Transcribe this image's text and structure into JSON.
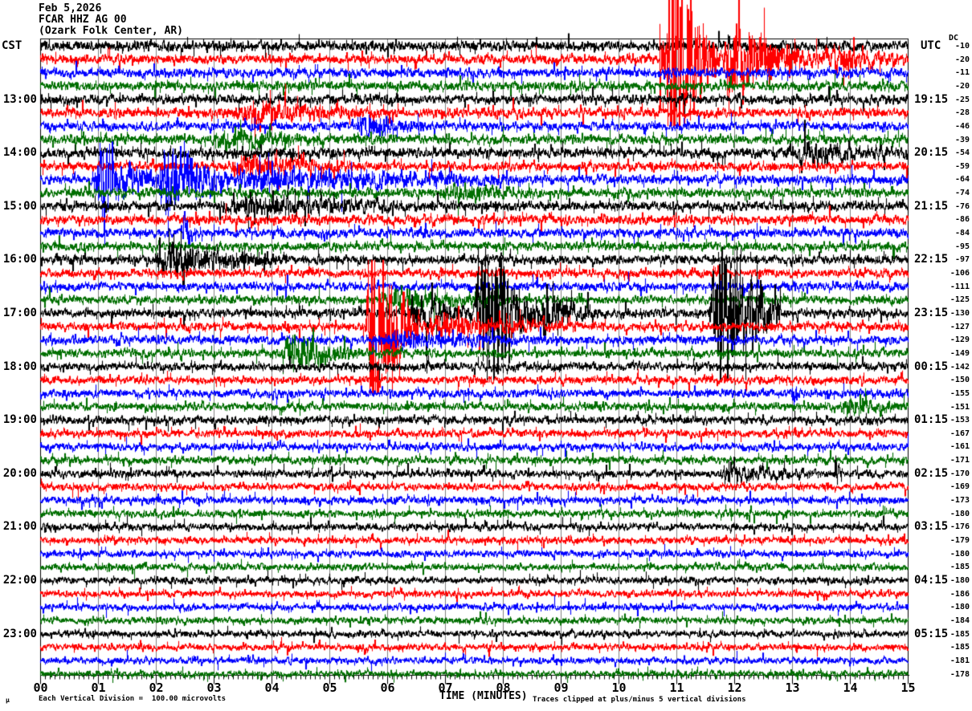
{
  "header": {
    "date": "Feb 5,2026",
    "station": "FCAR HHZ AG 00",
    "location": "(Ozark Folk Center, AR)"
  },
  "left_axis": {
    "label": "CST"
  },
  "right_axis": {
    "label": "UTC"
  },
  "dc_column": {
    "label": "DC"
  },
  "x_axis": {
    "title": "TIME (MINUTES)",
    "tick_labels": [
      "00",
      "01",
      "02",
      "03",
      "04",
      "05",
      "06",
      "07",
      "08",
      "09",
      "10",
      "11",
      "12",
      "13",
      "14",
      "15"
    ],
    "minutes_min": 0,
    "minutes_max": 15,
    "minor_ticks_per_minute": 12
  },
  "footer": {
    "micro_symbol": "µ",
    "scale_note": "Each Vertical Division =  100.00 microvolts",
    "clip_note": "Traces clipped at plus/minus 5 vertical divisions"
  },
  "colors": {
    "trace_cycle": [
      "#000000",
      "#ff0000",
      "#0000ff",
      "#006e00"
    ],
    "grid": "#808080",
    "frame": "#000000",
    "background": "#ffffff"
  },
  "chart_data": {
    "type": "line",
    "subtype": "seismogram-helicorder",
    "station": "FCAR HHZ AG 00",
    "location": "(Ozark Folk Center, AR)",
    "date": "Feb 5,2026",
    "minutes_per_line": 15,
    "lines_per_hour": 4,
    "clip_divisions": 5,
    "division_microvolts": 100.0,
    "rows": [
      {
        "color": "black",
        "cst": null,
        "utc": null,
        "dc": -10
      },
      {
        "color": "red",
        "cst": null,
        "utc": null,
        "dc": -20
      },
      {
        "color": "blue",
        "cst": null,
        "utc": null,
        "dc": -11
      },
      {
        "color": "green",
        "cst": null,
        "utc": null,
        "dc": -20
      },
      {
        "color": "black",
        "cst": "13:00",
        "utc": "19:15",
        "dc": -25
      },
      {
        "color": "red",
        "cst": null,
        "utc": null,
        "dc": -28
      },
      {
        "color": "blue",
        "cst": null,
        "utc": null,
        "dc": -46
      },
      {
        "color": "green",
        "cst": null,
        "utc": null,
        "dc": -39
      },
      {
        "color": "black",
        "cst": "14:00",
        "utc": "20:15",
        "dc": -54
      },
      {
        "color": "red",
        "cst": null,
        "utc": null,
        "dc": -59
      },
      {
        "color": "blue",
        "cst": null,
        "utc": null,
        "dc": -64
      },
      {
        "color": "green",
        "cst": null,
        "utc": null,
        "dc": -74
      },
      {
        "color": "black",
        "cst": "15:00",
        "utc": "21:15",
        "dc": -76
      },
      {
        "color": "red",
        "cst": null,
        "utc": null,
        "dc": -86
      },
      {
        "color": "blue",
        "cst": null,
        "utc": null,
        "dc": -84
      },
      {
        "color": "green",
        "cst": null,
        "utc": null,
        "dc": -95
      },
      {
        "color": "black",
        "cst": "16:00",
        "utc": "22:15",
        "dc": -97
      },
      {
        "color": "red",
        "cst": null,
        "utc": null,
        "dc": -106
      },
      {
        "color": "blue",
        "cst": null,
        "utc": null,
        "dc": -111
      },
      {
        "color": "green",
        "cst": null,
        "utc": null,
        "dc": -125
      },
      {
        "color": "black",
        "cst": "17:00",
        "utc": "23:15",
        "dc": -130
      },
      {
        "color": "red",
        "cst": null,
        "utc": null,
        "dc": -127
      },
      {
        "color": "blue",
        "cst": null,
        "utc": null,
        "dc": -129
      },
      {
        "color": "green",
        "cst": null,
        "utc": null,
        "dc": -149
      },
      {
        "color": "black",
        "cst": "18:00",
        "utc": "00:15",
        "dc": -142
      },
      {
        "color": "red",
        "cst": null,
        "utc": null,
        "dc": -150
      },
      {
        "color": "blue",
        "cst": null,
        "utc": null,
        "dc": -155
      },
      {
        "color": "green",
        "cst": null,
        "utc": null,
        "dc": -151
      },
      {
        "color": "black",
        "cst": "19:00",
        "utc": "01:15",
        "dc": -153
      },
      {
        "color": "red",
        "cst": null,
        "utc": null,
        "dc": -167
      },
      {
        "color": "blue",
        "cst": null,
        "utc": null,
        "dc": -161
      },
      {
        "color": "green",
        "cst": null,
        "utc": null,
        "dc": -171
      },
      {
        "color": "black",
        "cst": "20:00",
        "utc": "02:15",
        "dc": -170
      },
      {
        "color": "red",
        "cst": null,
        "utc": null,
        "dc": -169
      },
      {
        "color": "blue",
        "cst": null,
        "utc": null,
        "dc": -173
      },
      {
        "color": "green",
        "cst": null,
        "utc": null,
        "dc": -180
      },
      {
        "color": "black",
        "cst": "21:00",
        "utc": "03:15",
        "dc": -176
      },
      {
        "color": "red",
        "cst": null,
        "utc": null,
        "dc": -179
      },
      {
        "color": "blue",
        "cst": null,
        "utc": null,
        "dc": -180
      },
      {
        "color": "green",
        "cst": null,
        "utc": null,
        "dc": -185
      },
      {
        "color": "black",
        "cst": "22:00",
        "utc": "04:15",
        "dc": -180
      },
      {
        "color": "red",
        "cst": null,
        "utc": null,
        "dc": -186
      },
      {
        "color": "blue",
        "cst": null,
        "utc": null,
        "dc": -180
      },
      {
        "color": "green",
        "cst": null,
        "utc": null,
        "dc": -184
      },
      {
        "color": "black",
        "cst": "23:00",
        "utc": "05:15",
        "dc": -185
      },
      {
        "color": "red",
        "cst": null,
        "utc": null,
        "dc": -185
      },
      {
        "color": "blue",
        "cst": null,
        "utc": null,
        "dc": -181
      },
      {
        "color": "green",
        "cst": null,
        "utc": null,
        "dc": -178
      }
    ],
    "base_noise_amp": [
      5.5,
      5.0,
      5.0,
      5.0,
      5.0,
      5.0,
      4.8,
      5.0,
      5.5,
      4.8,
      5.0,
      4.8,
      5.0,
      5.0,
      4.8,
      4.8,
      4.8,
      4.6,
      4.6,
      4.6,
      4.8,
      4.6,
      4.6,
      4.6,
      4.6,
      4.4,
      4.4,
      4.4,
      4.4,
      4.2,
      4.2,
      4.2,
      4.2,
      4.0,
      4.0,
      4.0,
      3.9,
      3.8,
      3.8,
      3.8,
      3.7,
      3.6,
      3.6,
      3.6,
      3.6,
      3.5,
      3.5,
      3.5
    ],
    "events": [
      {
        "row": 1,
        "t0": 10.7,
        "t1": 10.78,
        "amp": 140,
        "desc": "initial spike"
      },
      {
        "row": 1,
        "t0": 10.78,
        "t1": 11.7,
        "amp": 170,
        "desc": "clipped burst"
      },
      {
        "row": 1,
        "t0": 11.7,
        "t1": 13.6,
        "amp": 42,
        "desc": "decay"
      },
      {
        "row": 1,
        "t0": 13.6,
        "t1": 15.0,
        "amp": 14,
        "desc": "coda"
      },
      {
        "row": 5,
        "t0": 3.3,
        "t1": 6.0,
        "amp": 12,
        "desc": "elevated noise"
      },
      {
        "row": 6,
        "t0": 5.45,
        "t1": 6.6,
        "amp": 15,
        "desc": "small burst"
      },
      {
        "row": 7,
        "t0": 2.9,
        "t1": 4.9,
        "amp": 10,
        "desc": "elevated noise"
      },
      {
        "row": 8,
        "t0": 12.9,
        "t1": 15.0,
        "amp": 9,
        "desc": "elevated noise"
      },
      {
        "row": 9,
        "t0": 3.2,
        "t1": 5.9,
        "amp": 9,
        "desc": "elevated noise"
      },
      {
        "row": 10,
        "t0": 0.9,
        "t1": 1.95,
        "amp": 46,
        "desc": "large burst"
      },
      {
        "row": 10,
        "t0": 2.0,
        "t1": 3.25,
        "amp": 52,
        "desc": "large burst"
      },
      {
        "row": 10,
        "t0": 3.25,
        "t1": 8.0,
        "amp": 13,
        "desc": "coda"
      },
      {
        "row": 11,
        "t0": 6.9,
        "t1": 8.6,
        "amp": 10,
        "desc": "elevated noise"
      },
      {
        "row": 12,
        "t0": 3.0,
        "t1": 7.3,
        "amp": 9,
        "desc": "elevated noise"
      },
      {
        "row": 14,
        "t0": 2.45,
        "t1": 2.7,
        "amp": 28,
        "desc": "spike"
      },
      {
        "row": 16,
        "t0": 1.9,
        "t1": 4.2,
        "amp": 20,
        "desc": "fuzzy burst"
      },
      {
        "row": 19,
        "t0": 5.9,
        "t1": 8.0,
        "amp": 10,
        "desc": "elevated noise"
      },
      {
        "row": 20,
        "t0": 6.35,
        "t1": 7.5,
        "amp": 28,
        "desc": "buildup"
      },
      {
        "row": 20,
        "t0": 7.5,
        "t1": 8.6,
        "amp": 105,
        "desc": "clipped burst"
      },
      {
        "row": 20,
        "t0": 8.6,
        "t1": 9.6,
        "amp": 24,
        "desc": "coda"
      },
      {
        "row": 20,
        "t0": 11.55,
        "t1": 12.8,
        "amp": 105,
        "desc": "clipped burst"
      },
      {
        "row": 21,
        "t0": 5.6,
        "t1": 6.55,
        "amp": 135,
        "desc": "clipped burst"
      },
      {
        "row": 21,
        "t0": 6.55,
        "t1": 9.2,
        "amp": 13,
        "desc": "coda"
      },
      {
        "row": 22,
        "t0": 5.7,
        "t1": 8.8,
        "amp": 9,
        "desc": "elevated noise"
      },
      {
        "row": 23,
        "t0": 4.15,
        "t1": 5.5,
        "amp": 24,
        "desc": "burst"
      },
      {
        "row": 26,
        "t0": 12.95,
        "t1": 13.15,
        "amp": 16,
        "desc": "spike"
      },
      {
        "row": 27,
        "t0": 13.8,
        "t1": 15.0,
        "amp": 9,
        "desc": "elevated noise"
      },
      {
        "row": 32,
        "t0": 11.7,
        "t1": 13.4,
        "amp": 8,
        "desc": "elevated noise"
      },
      {
        "row": 32,
        "t0": 13.72,
        "t1": 13.85,
        "amp": 24,
        "desc": "spike"
      }
    ]
  }
}
